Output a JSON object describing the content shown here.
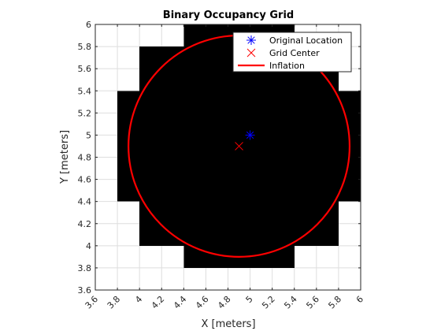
{
  "chart_data": {
    "type": "occupancy-grid",
    "title": "Binary Occupancy Grid",
    "xlabel": "X [meters]",
    "ylabel": "Y [meters]",
    "xlim": [
      3.6,
      6
    ],
    "ylim": [
      3.6,
      6
    ],
    "xticks": [
      3.6,
      3.8,
      4,
      4.2,
      4.4,
      4.6,
      4.8,
      5,
      5.2,
      5.4,
      5.6,
      5.8,
      6
    ],
    "yticks": [
      3.6,
      3.8,
      4,
      4.2,
      4.4,
      4.6,
      4.8,
      5,
      5.2,
      5.4,
      5.6,
      5.8,
      6
    ],
    "xtick_labels": [
      "3.6",
      "3.8",
      "4",
      "4.2",
      "4.4",
      "4.6",
      "4.8",
      "5",
      "5.2",
      "5.4",
      "5.6",
      "5.8",
      "6"
    ],
    "ytick_labels": [
      "3.6",
      "3.8",
      "4",
      "4.2",
      "4.4",
      "4.6",
      "4.8",
      "5",
      "5.2",
      "5.4",
      "5.6",
      "5.8",
      "6"
    ],
    "grid": true,
    "legend_position": "top-right",
    "occupied_rows": [
      {
        "y_min": 5.8,
        "y_max": 6.0,
        "x_min": 4.4,
        "x_max": 5.4
      },
      {
        "y_min": 5.6,
        "y_max": 5.8,
        "x_min": 4.0,
        "x_max": 5.8
      },
      {
        "y_min": 5.4,
        "y_max": 5.6,
        "x_min": 4.0,
        "x_max": 5.8
      },
      {
        "y_min": 5.2,
        "y_max": 5.4,
        "x_min": 3.8,
        "x_max": 6.0
      },
      {
        "y_min": 5.0,
        "y_max": 5.2,
        "x_min": 3.8,
        "x_max": 6.0
      },
      {
        "y_min": 4.8,
        "y_max": 5.0,
        "x_min": 3.8,
        "x_max": 6.0
      },
      {
        "y_min": 4.6,
        "y_max": 4.8,
        "x_min": 3.8,
        "x_max": 6.0
      },
      {
        "y_min": 4.4,
        "y_max": 4.6,
        "x_min": 3.8,
        "x_max": 6.0
      },
      {
        "y_min": 4.2,
        "y_max": 4.4,
        "x_min": 4.0,
        "x_max": 5.8
      },
      {
        "y_min": 4.0,
        "y_max": 4.2,
        "x_min": 4.0,
        "x_max": 5.8
      },
      {
        "y_min": 3.8,
        "y_max": 4.0,
        "x_min": 4.4,
        "x_max": 5.4
      }
    ],
    "series": [
      {
        "name": "Original Location",
        "marker": "asterisk",
        "color": "#0000ff",
        "x": 5.0,
        "y": 5.0
      },
      {
        "name": "Grid Center",
        "marker": "x",
        "color": "#ff0000",
        "x": 4.9,
        "y": 4.9
      },
      {
        "name": "Inflation",
        "type": "circle",
        "color": "#ff0000",
        "center": [
          4.9,
          4.9
        ],
        "radius": 1.0
      }
    ]
  }
}
